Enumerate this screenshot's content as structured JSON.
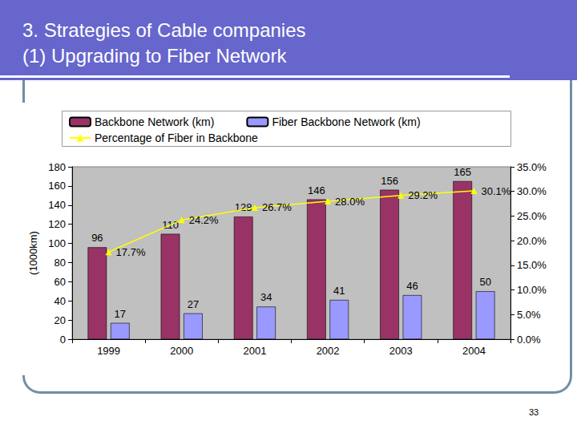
{
  "slide": {
    "heading": [
      "3. Strategies of Cable companies",
      "(1) Upgrading to Fiber Network"
    ],
    "page_number": "33"
  },
  "chart_data": {
    "type": "bar",
    "categories": [
      "1999",
      "2000",
      "2001",
      "2002",
      "2003",
      "2004"
    ],
    "y_label": "(1000km)",
    "ylim": [
      0,
      180
    ],
    "yticks": [
      0,
      20,
      40,
      60,
      80,
      100,
      120,
      140,
      160,
      180
    ],
    "y2lim": [
      0,
      35
    ],
    "y2ticks": [
      {
        "value": 0,
        "label": "0.0%"
      },
      {
        "value": 5,
        "label": "5.0%"
      },
      {
        "value": 10,
        "label": "10.0%"
      },
      {
        "value": 15,
        "label": "15.0%"
      },
      {
        "value": 20,
        "label": "20.0%"
      },
      {
        "value": 25,
        "label": "25.0%"
      },
      {
        "value": 30,
        "label": "30.0%"
      },
      {
        "value": 35,
        "label": "35.0%"
      }
    ],
    "grid": false,
    "legend": "top",
    "data_labels": true,
    "series": [
      {
        "name": "Backbone Network (km)",
        "type": "bar",
        "color": "#993366",
        "values": [
          96,
          110,
          128,
          146,
          156,
          165
        ]
      },
      {
        "name": "Fiber Backbone Network (km)",
        "type": "bar",
        "color": "#9999ff",
        "values": [
          17,
          27,
          34,
          41,
          46,
          50
        ]
      },
      {
        "name": "Percentage of Fiber in Backbone",
        "type": "line",
        "axis": "y2",
        "color": "#ffff00",
        "marker": "triangle",
        "values": [
          17.7,
          24.2,
          26.7,
          28.0,
          29.2,
          30.1
        ],
        "value_labels": [
          "17.7%",
          "24.2%",
          "26.7%",
          "28.0%",
          "29.2%",
          "30.1%"
        ]
      }
    ]
  }
}
